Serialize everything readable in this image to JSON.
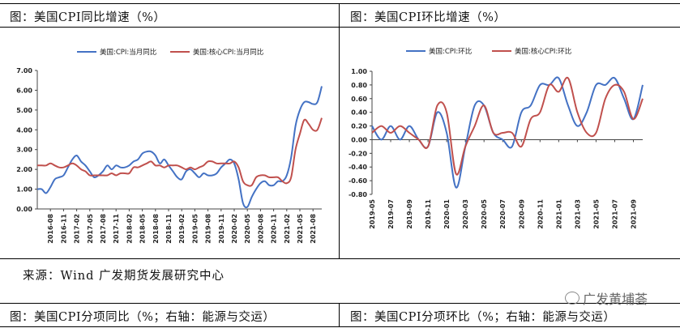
{
  "left_title": "图：美国CPI同比增速（%）",
  "right_title": "图：美国CPI环比增速（%）",
  "source": "来源：Wind  广发期货发展研究中心",
  "bottom_left_title": "图：美国CPI分项同比（%；右轴：能源与交运）",
  "bottom_right_title": "图：美国CPI分项环比（%；右轴：能源与交运）",
  "watermark": "广发黄埔荟",
  "watermark_icon": "wechat-icon",
  "colors": {
    "blue": "#4472C4",
    "red": "#C0504D"
  },
  "chart_data": [
    {
      "type": "line",
      "title": "",
      "legend_position": "top",
      "ylim": [
        0,
        7
      ],
      "yticks": [
        0,
        1,
        2,
        3,
        4,
        5,
        6,
        7
      ],
      "ytick_labels": [
        "0.00",
        "1.00",
        "2.00",
        "3.00",
        "4.00",
        "5.00",
        "6.00",
        "7.00"
      ],
      "x": [
        "2016-05",
        "2016-06",
        "2016-07",
        "2016-08",
        "2016-09",
        "2016-10",
        "2016-11",
        "2016-12",
        "2017-01",
        "2017-02",
        "2017-03",
        "2017-04",
        "2017-05",
        "2017-06",
        "2017-07",
        "2017-08",
        "2017-09",
        "2017-10",
        "2017-11",
        "2017-12",
        "2018-01",
        "2018-02",
        "2018-03",
        "2018-04",
        "2018-05",
        "2018-06",
        "2018-07",
        "2018-08",
        "2018-09",
        "2018-10",
        "2018-11",
        "2018-12",
        "2019-01",
        "2019-02",
        "2019-03",
        "2019-04",
        "2019-05",
        "2019-06",
        "2019-07",
        "2019-08",
        "2019-09",
        "2019-10",
        "2019-11",
        "2019-12",
        "2020-01",
        "2020-02",
        "2020-03",
        "2020-04",
        "2020-05",
        "2020-06",
        "2020-07",
        "2020-08",
        "2020-09",
        "2020-10",
        "2020-11",
        "2020-12",
        "2021-01",
        "2021-02",
        "2021-03",
        "2021-04",
        "2021-05",
        "2021-06",
        "2021-07",
        "2021-08",
        "2021-09",
        "2021-10"
      ],
      "xtick_labels": [
        "2016-08",
        "2016-11",
        "2017-02",
        "2017-05",
        "2017-08",
        "2017-11",
        "2018-02",
        "2018-05",
        "2018-08",
        "2018-11",
        "2019-02",
        "2019-05",
        "2019-08",
        "2019-11",
        "2020-02",
        "2020-05",
        "2020-08",
        "2020-11",
        "2021-02",
        "2021-05",
        "2021-08"
      ],
      "series": [
        {
          "name": "美国:CPI:当月同比",
          "color": "#4472C4",
          "values": [
            1.0,
            1.0,
            0.8,
            1.1,
            1.5,
            1.6,
            1.7,
            2.1,
            2.5,
            2.7,
            2.4,
            2.2,
            1.9,
            1.6,
            1.7,
            1.9,
            2.2,
            2.0,
            2.2,
            2.1,
            2.1,
            2.2,
            2.4,
            2.5,
            2.8,
            2.9,
            2.9,
            2.7,
            2.3,
            2.5,
            2.2,
            1.9,
            1.6,
            1.5,
            1.9,
            2.0,
            1.8,
            1.6,
            1.8,
            1.7,
            1.7,
            1.8,
            2.1,
            2.3,
            2.5,
            2.3,
            1.5,
            0.3,
            0.1,
            0.6,
            1.0,
            1.3,
            1.4,
            1.2,
            1.2,
            1.4,
            1.4,
            1.7,
            2.6,
            4.2,
            5.0,
            5.4,
            5.4,
            5.3,
            5.4,
            6.2
          ]
        },
        {
          "name": "美国:核心CPI:当月同比",
          "color": "#C0504D",
          "values": [
            2.2,
            2.2,
            2.2,
            2.3,
            2.2,
            2.1,
            2.1,
            2.2,
            2.3,
            2.2,
            2.0,
            1.9,
            1.7,
            1.7,
            1.7,
            1.7,
            1.7,
            1.8,
            1.7,
            1.8,
            1.8,
            1.8,
            2.1,
            2.1,
            2.2,
            2.3,
            2.4,
            2.2,
            2.2,
            2.1,
            2.2,
            2.2,
            2.2,
            2.1,
            2.0,
            2.1,
            2.0,
            2.1,
            2.2,
            2.4,
            2.4,
            2.3,
            2.3,
            2.3,
            2.3,
            2.4,
            2.1,
            1.4,
            1.2,
            1.2,
            1.6,
            1.7,
            1.7,
            1.6,
            1.6,
            1.6,
            1.4,
            1.3,
            1.6,
            3.0,
            3.8,
            4.5,
            4.3,
            4.0,
            4.0,
            4.6
          ]
        }
      ]
    },
    {
      "type": "line",
      "title": "",
      "legend_position": "top",
      "ylim": [
        -0.8,
        1.0
      ],
      "yticks": [
        -0.8,
        -0.6,
        -0.4,
        -0.2,
        0.0,
        0.2,
        0.4,
        0.6,
        0.8,
        1.0
      ],
      "ytick_labels": [
        "-0.80",
        "-0.60",
        "-0.40",
        "-0.20",
        "0.00",
        "0.20",
        "0.40",
        "0.60",
        "0.80",
        "1.00"
      ],
      "x": [
        "2019-05",
        "2019-06",
        "2019-07",
        "2019-08",
        "2019-09",
        "2019-10",
        "2019-11",
        "2019-12",
        "2020-01",
        "2020-02",
        "2020-03",
        "2020-04",
        "2020-05",
        "2020-06",
        "2020-07",
        "2020-08",
        "2020-09",
        "2020-10",
        "2020-11",
        "2020-12",
        "2021-01",
        "2021-02",
        "2021-03",
        "2021-04",
        "2021-05",
        "2021-06",
        "2021-07",
        "2021-08",
        "2021-09",
        "2021-10"
      ],
      "xtick_labels": [
        "2019-05",
        "2019-07",
        "2019-09",
        "2019-11",
        "2020-01",
        "2020-03",
        "2020-05",
        "2020-07",
        "2020-09",
        "2020-11",
        "2021-01",
        "2021-03",
        "2021-05",
        "2021-07",
        "2021-09"
      ],
      "series": [
        {
          "name": "美国:CPI:环比",
          "color": "#4472C4",
          "values": [
            0.2,
            0.0,
            0.2,
            0.0,
            0.2,
            0.0,
            -0.1,
            0.4,
            0.1,
            -0.7,
            -0.1,
            0.5,
            0.5,
            0.1,
            0.0,
            -0.1,
            0.4,
            0.5,
            0.8,
            0.8,
            0.9,
            0.5,
            0.2,
            0.4,
            0.8,
            0.8,
            0.9,
            0.6,
            0.3,
            0.8
          ]
        },
        {
          "name": "美国:核心CPI:环比",
          "color": "#C0504D",
          "values": [
            0.1,
            0.2,
            0.1,
            0.2,
            0.1,
            0.0,
            -0.1,
            0.5,
            0.4,
            -0.5,
            -0.1,
            0.2,
            0.5,
            0.1,
            0.1,
            0.1,
            -0.1,
            0.3,
            0.4,
            0.8,
            0.7,
            0.9,
            0.4,
            0.1,
            0.1,
            0.6,
            0.8,
            0.7,
            0.3,
            0.6
          ]
        }
      ]
    }
  ]
}
